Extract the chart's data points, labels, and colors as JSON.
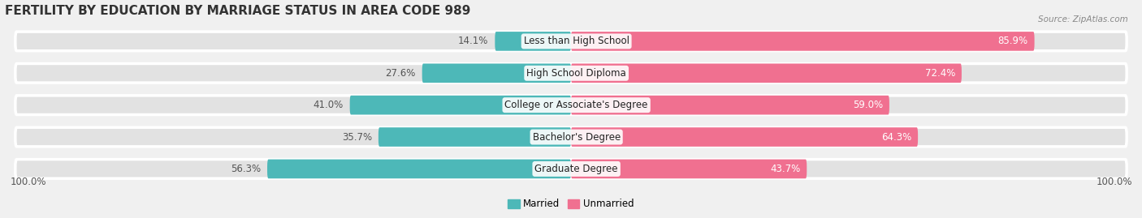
{
  "title": "FERTILITY BY EDUCATION BY MARRIAGE STATUS IN AREA CODE 989",
  "source": "Source: ZipAtlas.com",
  "categories": [
    "Less than High School",
    "High School Diploma",
    "College or Associate's Degree",
    "Bachelor's Degree",
    "Graduate Degree"
  ],
  "married": [
    14.1,
    27.6,
    41.0,
    35.7,
    56.3
  ],
  "unmarried": [
    85.9,
    72.4,
    59.0,
    64.3,
    43.7
  ],
  "married_color": "#4db8b8",
  "unmarried_color": "#f07090",
  "bg_color": "#f0f0f0",
  "bar_bg_color": "#e2e2e2",
  "bar_bg_edge_color": "#ffffff",
  "title_fontsize": 11,
  "label_fontsize": 8.5,
  "source_fontsize": 7.5,
  "axis_label_left": "100.0%",
  "axis_label_right": "100.0%"
}
